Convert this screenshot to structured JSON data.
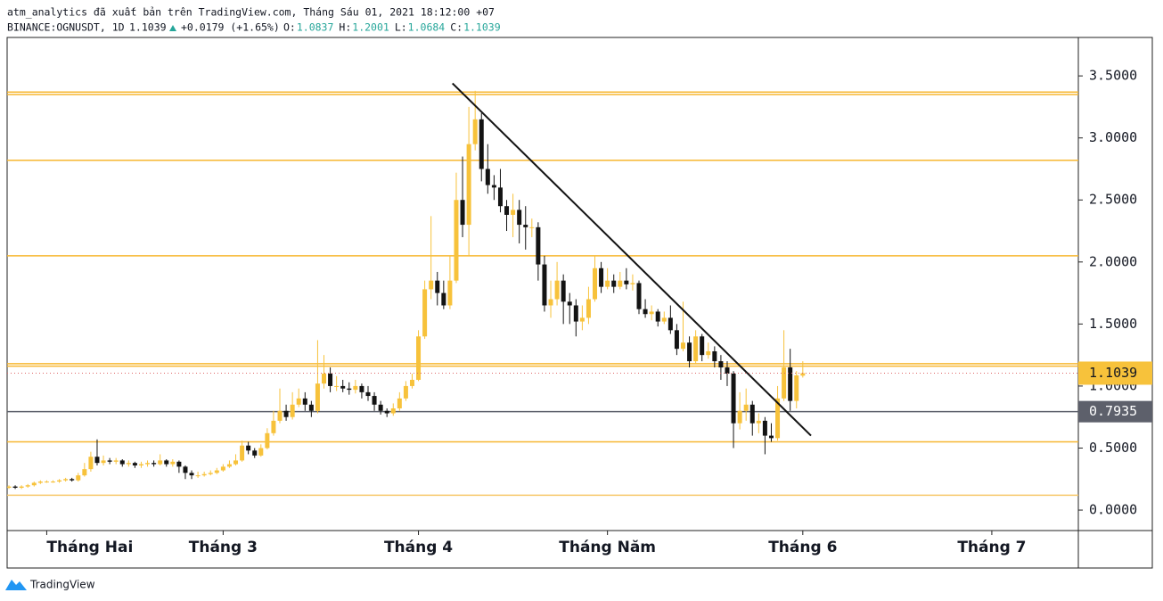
{
  "header": {
    "line1": "atm_analytics đã xuất bản trên TradingView.com, Tháng Sáu 01, 2021 18:12:00 +07",
    "symbol": "BINANCE:OGNUSDT, 1D",
    "last": "1.1039",
    "change": "+0.0179 (+1.65%)",
    "ohlc": [
      {
        "label": "O:",
        "value": "1.0837"
      },
      {
        "label": "H:",
        "value": "1.2001"
      },
      {
        "label": "L:",
        "value": "1.0684"
      },
      {
        "label": "C:",
        "value": "1.1039"
      }
    ]
  },
  "footer": {
    "brand": "TradingView"
  },
  "chart_data": {
    "type": "candlestick",
    "categories": [
      null,
      null,
      null,
      null,
      null,
      null,
      "Tháng Hai",
      null,
      null,
      null,
      null,
      null,
      null,
      null,
      null,
      null,
      null,
      null,
      null,
      null,
      null,
      null,
      null,
      null,
      null,
      null,
      null,
      null,
      null,
      null,
      null,
      null,
      null,
      null,
      "Tháng 3",
      null,
      null,
      null,
      null,
      null,
      null,
      null,
      null,
      null,
      null,
      null,
      null,
      null,
      null,
      null,
      null,
      null,
      null,
      null,
      null,
      null,
      null,
      null,
      null,
      null,
      null,
      null,
      null,
      null,
      null,
      "Tháng 4",
      null,
      null,
      null,
      null,
      null,
      null,
      null,
      null,
      null,
      null,
      null,
      null,
      null,
      null,
      null,
      null,
      null,
      null,
      null,
      null,
      null,
      null,
      null,
      null,
      null,
      null,
      null,
      null,
      null,
      "Tháng Năm",
      null,
      null,
      null,
      null,
      null,
      null,
      null,
      null,
      null,
      null,
      null,
      null,
      null,
      null,
      null,
      null,
      null,
      null,
      null,
      null,
      null,
      null,
      null,
      null,
      null,
      null,
      null,
      null,
      null,
      null,
      "Tháng 6",
      null,
      null,
      null,
      null,
      null,
      null,
      null,
      null,
      null,
      null,
      null,
      null,
      null,
      null,
      null,
      null,
      null,
      null,
      null,
      null,
      null,
      null,
      null,
      null,
      null,
      null,
      null,
      null,
      null,
      "Tháng 7"
    ],
    "series": [
      {
        "up_color": "#f7c23b",
        "down_color": "#131313",
        "open": [
          0.18,
          0.19,
          0.18,
          0.19,
          0.2,
          0.22,
          0.23,
          0.23,
          0.23,
          0.24,
          0.25,
          0.24,
          0.28,
          0.33,
          0.43,
          0.38,
          0.4,
          0.39,
          0.4,
          0.37,
          0.38,
          0.36,
          0.37,
          0.38,
          0.37,
          0.4,
          0.37,
          0.39,
          0.35,
          0.3,
          0.28,
          0.28,
          0.29,
          0.3,
          0.32,
          0.35,
          0.37,
          0.4,
          0.52,
          0.48,
          0.44,
          0.5,
          0.62,
          0.72,
          0.8,
          0.75,
          0.85,
          0.9,
          0.85,
          0.8,
          1.02,
          1.1,
          1.0,
          1.0,
          0.98,
          0.97,
          1.0,
          0.95,
          0.92,
          0.85,
          0.8,
          0.78,
          0.82,
          0.9,
          1.0,
          1.05,
          1.4,
          1.78,
          1.85,
          1.75,
          1.65,
          1.85,
          2.5,
          2.3,
          2.95,
          3.15,
          2.75,
          2.62,
          2.6,
          2.45,
          2.38,
          2.42,
          2.3,
          2.28,
          2.28,
          1.98,
          1.65,
          1.7,
          1.85,
          1.68,
          1.65,
          1.52,
          1.55,
          1.7,
          1.95,
          1.8,
          1.85,
          1.8,
          1.85,
          1.82,
          1.83,
          1.62,
          1.58,
          1.6,
          1.52,
          1.55,
          1.45,
          1.3,
          1.35,
          1.2,
          1.4,
          1.25,
          1.28,
          1.2,
          1.15,
          1.1,
          0.7,
          0.8,
          0.85,
          0.7,
          0.72,
          0.6,
          0.58,
          0.9,
          1.15,
          0.88,
          1.0837,
          null,
          null,
          null,
          null,
          null,
          null,
          null,
          null,
          null,
          null,
          null,
          null,
          null,
          null,
          null,
          null,
          null,
          null,
          null,
          null,
          null,
          null,
          null,
          null,
          null,
          null,
          null,
          null,
          null,
          null
        ],
        "high": [
          0.2,
          0.2,
          0.2,
          0.21,
          0.23,
          0.24,
          0.24,
          0.24,
          0.25,
          0.26,
          0.26,
          0.3,
          0.38,
          0.47,
          0.57,
          0.44,
          0.42,
          0.42,
          0.41,
          0.4,
          0.39,
          0.39,
          0.4,
          0.4,
          0.45,
          0.41,
          0.41,
          0.4,
          0.36,
          0.32,
          0.31,
          0.31,
          0.32,
          0.34,
          0.37,
          0.4,
          0.45,
          0.56,
          0.55,
          0.5,
          0.53,
          0.66,
          0.8,
          0.98,
          0.85,
          0.95,
          0.98,
          0.95,
          0.88,
          1.37,
          1.25,
          1.15,
          1.08,
          1.05,
          1.03,
          1.05,
          1.02,
          1.0,
          0.95,
          0.88,
          0.82,
          0.86,
          0.95,
          1.04,
          1.1,
          1.45,
          1.85,
          2.37,
          1.92,
          1.85,
          2.05,
          2.72,
          2.85,
          3.25,
          3.38,
          3.2,
          2.95,
          2.7,
          2.75,
          2.5,
          2.55,
          2.5,
          2.45,
          2.35,
          2.32,
          2.05,
          1.85,
          2.0,
          1.9,
          1.75,
          1.7,
          1.65,
          1.8,
          2.05,
          2.0,
          1.95,
          1.9,
          1.92,
          1.95,
          1.9,
          1.85,
          1.7,
          1.65,
          1.62,
          1.6,
          1.65,
          1.5,
          1.68,
          1.4,
          1.45,
          1.42,
          1.35,
          1.32,
          1.25,
          1.2,
          1.12,
          0.95,
          0.98,
          0.88,
          0.78,
          0.75,
          0.7,
          1.0,
          1.45,
          1.3,
          1.12,
          1.2001,
          null,
          null,
          null,
          null,
          null,
          null,
          null,
          null,
          null,
          null,
          null,
          null,
          null,
          null,
          null,
          null,
          null,
          null,
          null,
          null,
          null,
          null,
          null,
          null,
          null,
          null,
          null,
          null,
          null,
          null
        ],
        "low": [
          0.17,
          0.17,
          0.17,
          0.18,
          0.19,
          0.21,
          0.22,
          0.22,
          0.22,
          0.23,
          0.23,
          0.23,
          0.27,
          0.31,
          0.36,
          0.36,
          0.37,
          0.37,
          0.35,
          0.35,
          0.34,
          0.34,
          0.35,
          0.35,
          0.36,
          0.35,
          0.35,
          0.3,
          0.25,
          0.25,
          0.26,
          0.27,
          0.28,
          0.29,
          0.31,
          0.34,
          0.36,
          0.39,
          0.45,
          0.42,
          0.43,
          0.49,
          0.6,
          0.7,
          0.72,
          0.73,
          0.83,
          0.8,
          0.75,
          0.78,
          0.98,
          0.95,
          0.96,
          0.95,
          0.93,
          0.94,
          0.9,
          0.88,
          0.8,
          0.77,
          0.75,
          0.76,
          0.8,
          0.88,
          0.98,
          1.04,
          1.38,
          1.7,
          1.65,
          1.62,
          1.62,
          1.83,
          2.2,
          2.05,
          2.9,
          2.65,
          2.55,
          2.5,
          2.4,
          2.25,
          2.2,
          2.15,
          2.1,
          2.2,
          1.85,
          1.6,
          1.55,
          1.65,
          1.5,
          1.5,
          1.4,
          1.45,
          1.5,
          1.68,
          1.75,
          1.78,
          1.75,
          1.78,
          1.78,
          1.77,
          1.58,
          1.55,
          1.53,
          1.48,
          1.5,
          1.42,
          1.25,
          1.28,
          1.15,
          1.18,
          1.2,
          1.22,
          1.15,
          1.05,
          1.0,
          0.5,
          0.65,
          0.72,
          0.6,
          0.62,
          0.45,
          0.55,
          0.56,
          0.88,
          0.8,
          0.82,
          1.0684,
          null,
          null,
          null,
          null,
          null,
          null,
          null,
          null,
          null,
          null,
          null,
          null,
          null,
          null,
          null,
          null,
          null,
          null,
          null,
          null,
          null,
          null,
          null,
          null,
          null,
          null,
          null,
          null,
          null,
          null
        ],
        "close": [
          0.19,
          0.18,
          0.19,
          0.2,
          0.22,
          0.23,
          0.23,
          0.23,
          0.24,
          0.25,
          0.24,
          0.28,
          0.33,
          0.43,
          0.38,
          0.4,
          0.39,
          0.4,
          0.37,
          0.38,
          0.36,
          0.37,
          0.38,
          0.37,
          0.4,
          0.37,
          0.39,
          0.35,
          0.3,
          0.28,
          0.28,
          0.29,
          0.3,
          0.32,
          0.35,
          0.37,
          0.4,
          0.52,
          0.48,
          0.44,
          0.5,
          0.62,
          0.72,
          0.8,
          0.75,
          0.85,
          0.9,
          0.85,
          0.8,
          1.02,
          1.1,
          1.0,
          1.0,
          0.98,
          0.97,
          1.0,
          0.95,
          0.92,
          0.85,
          0.8,
          0.78,
          0.82,
          0.9,
          1.0,
          1.05,
          1.4,
          1.78,
          1.85,
          1.75,
          1.65,
          1.85,
          2.5,
          2.3,
          2.95,
          3.15,
          2.75,
          2.62,
          2.6,
          2.45,
          2.38,
          2.42,
          2.3,
          2.28,
          2.28,
          1.98,
          1.65,
          1.7,
          1.85,
          1.68,
          1.65,
          1.52,
          1.55,
          1.7,
          1.95,
          1.8,
          1.85,
          1.8,
          1.85,
          1.82,
          1.83,
          1.62,
          1.58,
          1.6,
          1.52,
          1.55,
          1.45,
          1.3,
          1.35,
          1.2,
          1.4,
          1.25,
          1.28,
          1.2,
          1.15,
          1.1,
          0.7,
          0.8,
          0.85,
          0.7,
          0.72,
          0.6,
          0.58,
          0.9,
          1.15,
          0.88,
          1.086,
          1.1039,
          null,
          null,
          null,
          null,
          null,
          null,
          null,
          null,
          null,
          null,
          null,
          null,
          null,
          null,
          null,
          null,
          null,
          null,
          null,
          null,
          null,
          null,
          null,
          null,
          null,
          null,
          null,
          null,
          null,
          null
        ]
      }
    ],
    "ylim": [
      -0.165,
      3.81
    ],
    "yticks": [
      {
        "value": 0,
        "label": "0.0000"
      },
      {
        "value": 0.5,
        "label": "0.5000"
      },
      {
        "value": 1,
        "label": "1.0000"
      },
      {
        "value": 1.5,
        "label": "1.5000"
      },
      {
        "value": 2,
        "label": "2.0000"
      },
      {
        "value": 2.5,
        "label": "2.5000"
      },
      {
        "value": 3,
        "label": "3.0000"
      },
      {
        "value": 3.5,
        "label": "3.5000"
      }
    ],
    "hlines": [
      {
        "value": 3.37,
        "color": "#f7b731"
      },
      {
        "value": 3.35,
        "color": "#f7b731"
      },
      {
        "value": 2.82,
        "color": "#f7b731"
      },
      {
        "value": 2.05,
        "color": "#f7b731"
      },
      {
        "value": 1.18,
        "color": "#f7b731"
      },
      {
        "value": 1.16,
        "color": "#f7b731"
      },
      {
        "value": 0.55,
        "color": "#f7b731"
      },
      {
        "value": 0.12,
        "color": "#f7c86a"
      }
    ],
    "level": {
      "value": 0.7935,
      "label": "0.7935",
      "color": "#5d606b"
    },
    "last_label": "1.1039",
    "last_color": "#f7c23b",
    "trendline": {
      "x": [
        70.4,
        127.3
      ],
      "y": [
        3.44,
        0.6
      ],
      "color": "#131313"
    }
  }
}
